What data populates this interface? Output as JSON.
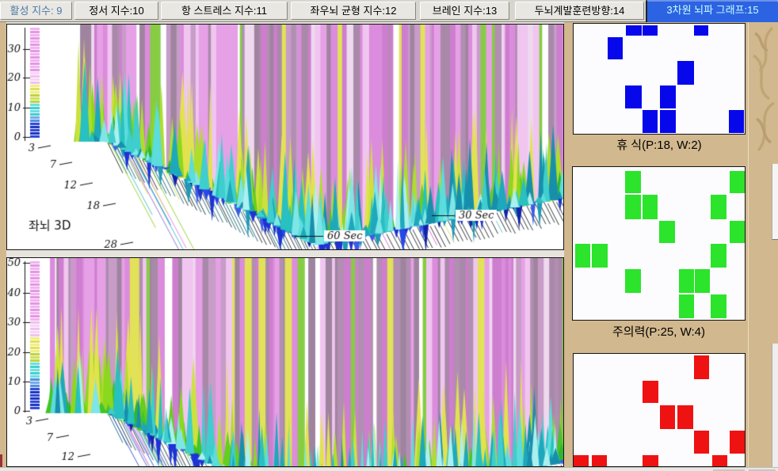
{
  "tab_bar": {
    "tabs": [
      {
        "label": "활성 지수: 9",
        "selected": false,
        "text_color": "#4A7AA8"
      },
      {
        "label": "정서 지수:10",
        "selected": false
      },
      {
        "label": "항 스트레스 지수:11",
        "selected": false
      },
      {
        "label": "좌우뇌 균형 지수:12",
        "selected": false
      },
      {
        "label": "브레인 지수:13",
        "selected": false
      },
      {
        "label": "두뇌계발훈련방향:14",
        "selected": false
      },
      {
        "label": "3차원 뇌파 그래프:15",
        "selected": true
      }
    ],
    "selected_bg": "#2C63E2",
    "selected_text": "#CCFFFF"
  },
  "charts": [
    {
      "title": "좌뇌 3D",
      "type": "3d_surface",
      "y_axis_ticks": [
        "30",
        "20",
        "10",
        "0"
      ],
      "freq_axis_ticks": [
        "3",
        "7",
        "12",
        "18",
        "28"
      ],
      "time_axis_labels": [
        "60 Sec",
        "30 Sec"
      ],
      "seed": 7
    },
    {
      "title": "",
      "type": "3d_surface",
      "y_axis_ticks": [
        "50",
        "40",
        "30",
        "20",
        "10",
        "0"
      ],
      "freq_axis_ticks": [
        "3",
        "7",
        "12"
      ],
      "time_axis_labels": [],
      "seed": 13
    }
  ],
  "palette": {
    "strips": [
      "#DC8CDC",
      "#DC8CDC",
      "#E6A0E6",
      "#E6A0E6",
      "#CE7ECE",
      "#CE7ECE",
      "#B28EB2",
      "#B28EB2",
      "#9F849F",
      "#F0C6F0",
      "#F0C6F0",
      "#C79CC7",
      "#EFD9EF",
      "#A989A9",
      "#E2E258",
      "#86CC44"
    ],
    "greens": [
      "#2FB62F",
      "#44C428",
      "#66CE1E",
      "#8CD81E",
      "#AEDE2C",
      "#CCE23C",
      "#E2E24E"
    ],
    "cyans": [
      "#28C0C0",
      "#3ECECE",
      "#1EA8BC",
      "#5CDCDC",
      "#7EE6E6",
      "#178FAC",
      "#ABF0F0"
    ],
    "dips": [
      "#1D33D6",
      "#2848E6",
      "#1122AA",
      "#3A5CE8",
      "#1E9AB8",
      "#2233CC"
    ],
    "rays": [
      "#E68CE6",
      "#D664D6",
      "#E6E05A",
      "#9CD63C",
      "#4CC8D0",
      "#3C64D8"
    ],
    "hatch_teal": "#1A6878",
    "hatch_dark": "#25272A",
    "legend_stops": [
      {
        "f": 0.0,
        "t": 0.4,
        "c": [
          "#F2AEF2",
          "#E293E2"
        ]
      },
      {
        "f": 0.4,
        "t": 0.5,
        "c": [
          "#F7D3F7",
          "#EFBFEF"
        ]
      },
      {
        "f": 0.5,
        "t": 0.6,
        "c": [
          "#F0EE7E",
          "#E2DE4E"
        ]
      },
      {
        "f": 0.6,
        "t": 0.66,
        "c": [
          "#CFDE55",
          "#BCD23A"
        ]
      },
      {
        "f": 0.66,
        "t": 0.78,
        "c": [
          "#66DEDE",
          "#3CCCCC"
        ]
      },
      {
        "f": 0.78,
        "t": 0.84,
        "c": [
          "#6FA6E8",
          "#4A8CE0"
        ]
      },
      {
        "f": 0.84,
        "t": 1.01,
        "c": [
          "#2742DC",
          "#1530BC"
        ]
      }
    ]
  },
  "panels": [
    {
      "label": "휴  식(P:18, W:2)",
      "color": "#0707EC",
      "squares": [
        [
          30.7,
          1.4,
          9.2,
          9.2
        ],
        [
          40.4,
          1.4,
          8.7,
          9.2
        ],
        [
          70.6,
          1.4,
          8.3,
          9.2
        ],
        [
          19.7,
          12.1,
          9.2,
          20.6
        ],
        [
          60.6,
          34.0,
          9.6,
          21.3
        ],
        [
          30.3,
          56.0,
          9.6,
          21.3
        ],
        [
          50.5,
          56.0,
          9.2,
          21.3
        ],
        [
          40.4,
          78.7,
          8.7,
          20.6
        ],
        [
          50.5,
          78.7,
          9.2,
          20.6
        ],
        [
          90.8,
          78.7,
          8.7,
          20.6
        ]
      ]
    },
    {
      "label": "주의력(P:25, W:4)",
      "color": "#2BE42B",
      "squares": [
        [
          30.6,
          2.6,
          9.1,
          14.4
        ],
        [
          91.3,
          2.6,
          8.7,
          14.4
        ],
        [
          30.6,
          17.9,
          9.1,
          16.4
        ],
        [
          40.6,
          17.9,
          8.7,
          16.4
        ],
        [
          80.4,
          17.9,
          9.1,
          16.4
        ],
        [
          50.2,
          35.4,
          9.1,
          14.4
        ],
        [
          91.3,
          35.4,
          8.7,
          14.4
        ],
        [
          1.4,
          50.3,
          8.7,
          15.4
        ],
        [
          11.0,
          50.3,
          9.1,
          15.4
        ],
        [
          80.4,
          50.3,
          9.1,
          15.4
        ],
        [
          30.6,
          66.7,
          9.1,
          15.9
        ],
        [
          61.6,
          66.7,
          8.7,
          15.9
        ],
        [
          70.8,
          66.7,
          8.7,
          15.9
        ],
        [
          61.6,
          83.6,
          8.7,
          15.4
        ],
        [
          80.4,
          83.6,
          9.1,
          15.4
        ]
      ]
    },
    {
      "label": "",
      "color": "#EF1212",
      "squares": [
        [
          70.6,
          1.4,
          8.7,
          20.8
        ],
        [
          40.4,
          23.6,
          9.2,
          20.1
        ],
        [
          50.5,
          45.8,
          8.7,
          20.8
        ],
        [
          60.6,
          45.8,
          9.2,
          20.8
        ],
        [
          70.6,
          68.1,
          8.7,
          20.8
        ],
        [
          91.3,
          68.1,
          8.7,
          20.8
        ],
        [
          0.0,
          90.3,
          8.7,
          9.7
        ],
        [
          10.6,
          90.3,
          8.7,
          9.7
        ],
        [
          40.4,
          90.3,
          9.2,
          9.7
        ],
        [
          81.2,
          90.3,
          8.7,
          9.7
        ]
      ]
    }
  ]
}
